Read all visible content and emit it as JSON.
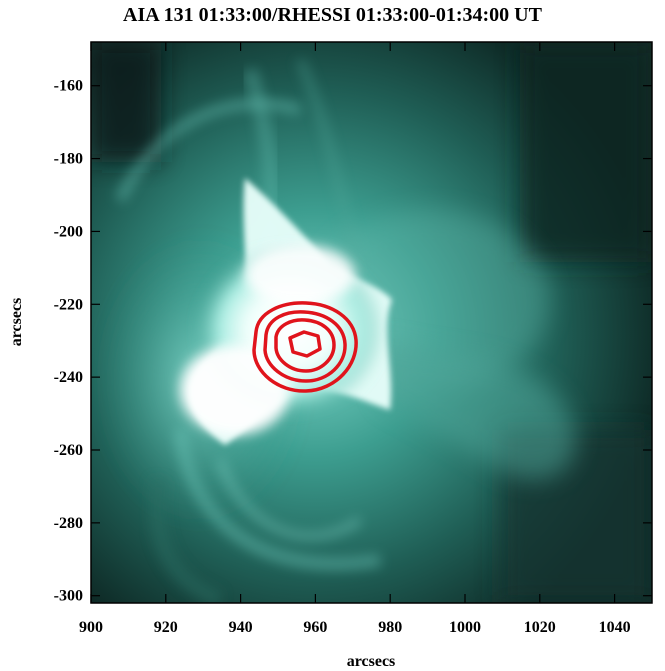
{
  "title": "AIA 131 01:33:00/RHESSI 01:33:00-01:34:00 UT",
  "chart_data": {
    "type": "heatmap",
    "description_colors": {
      "dark": "#0b1d1a",
      "mid": "#2f8c7f",
      "bright": "#bff7ee",
      "saturated": "#ffffff",
      "contour": "#e0141c"
    },
    "xlabel": "arcsecs",
    "ylabel": "arcsecs",
    "xlim": [
      900,
      1050
    ],
    "ylim": [
      -302,
      -148
    ],
    "x_ticks": [
      900,
      920,
      940,
      960,
      980,
      1000,
      1020,
      1040
    ],
    "y_ticks": [
      -160,
      -180,
      -200,
      -220,
      -240,
      -260,
      -280,
      -300
    ],
    "contour_center": [
      957,
      -231
    ],
    "contour_levels": 4
  }
}
